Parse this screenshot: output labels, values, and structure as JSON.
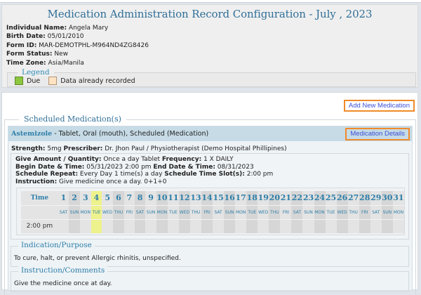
{
  "header": {
    "title": "Medication Administration Record Configuration - July , 2023",
    "fields": [
      {
        "label": "Individual Name:",
        "value": "Angela Mary"
      },
      {
        "label": "Birth Date:",
        "value": "05/01/2010"
      },
      {
        "label": "Form ID:",
        "value": "MAR-DEMOTPHL-M964ND4ZG8426"
      },
      {
        "label": "Form Status:",
        "value": "New"
      },
      {
        "label": "Time Zone:",
        "value": "Asia/Manila"
      }
    ],
    "legend": {
      "title": "Legend",
      "items": [
        {
          "label": "Due",
          "color": "#8dc63f"
        },
        {
          "label": "Data already recorded",
          "color": "#fde3c2"
        }
      ]
    }
  },
  "actions": {
    "add_new_medication": "Add New Medication",
    "medication_details": "Medication Details"
  },
  "scheduled": {
    "title": "Scheduled Medication(s)",
    "medication": {
      "name": "Astemizole",
      "description": " - Tablet, Oral (mouth), Scheduled (Medication)",
      "strength_label": "Strength:",
      "strength_value": " 5mg ",
      "prescriber_label": "Prescriber:",
      "prescriber_value": " Dr. Jhon Paul / Physiotherapist (Demo Hospital Phillipines)",
      "give_amount_label": "Give Amount / Quantity:",
      "give_amount_value": " Once a day Tablet ",
      "frequency_label": "Frequency:",
      "frequency_value": " 1 X DAILY",
      "begin_label": "Begin Date & Time:",
      "begin_value": " 05/31/2023 2:00 pm ",
      "end_label": "End Date & Time:",
      "end_value": " 08/31/2023",
      "repeat_label": "Schedule Repeat:",
      "repeat_value": " Every Day 1 time(s) a day ",
      "slots_label": "Schedule Time Slot(s):",
      "slots_value": " 2:00 pm",
      "instruction_label": "Instruction:",
      "instruction_value": " Give medicine once a day. 0+1+0"
    },
    "calendar": {
      "time_header": "Time",
      "time_slots": [
        "2:00 pm"
      ],
      "due_day": 4,
      "days": [
        {
          "n": "1",
          "dow": "SAT"
        },
        {
          "n": "2",
          "dow": "SUN"
        },
        {
          "n": "3",
          "dow": "MON"
        },
        {
          "n": "4",
          "dow": "TUE"
        },
        {
          "n": "5",
          "dow": "WED"
        },
        {
          "n": "6",
          "dow": "THU"
        },
        {
          "n": "7",
          "dow": "FRI"
        },
        {
          "n": "8",
          "dow": "SAT"
        },
        {
          "n": "9",
          "dow": "SUN"
        },
        {
          "n": "10",
          "dow": "MON"
        },
        {
          "n": "11",
          "dow": "TUE"
        },
        {
          "n": "12",
          "dow": "WED"
        },
        {
          "n": "13",
          "dow": "THU"
        },
        {
          "n": "14",
          "dow": "FRI"
        },
        {
          "n": "15",
          "dow": "SAT"
        },
        {
          "n": "16",
          "dow": "SUN"
        },
        {
          "n": "17",
          "dow": "MON"
        },
        {
          "n": "18",
          "dow": "TUE"
        },
        {
          "n": "19",
          "dow": "WED"
        },
        {
          "n": "20",
          "dow": "THU"
        },
        {
          "n": "21",
          "dow": "FRI"
        },
        {
          "n": "22",
          "dow": "SAT"
        },
        {
          "n": "23",
          "dow": "SUN"
        },
        {
          "n": "24",
          "dow": "MON"
        },
        {
          "n": "25",
          "dow": "TUE"
        },
        {
          "n": "26",
          "dow": "WED"
        },
        {
          "n": "27",
          "dow": "THU"
        },
        {
          "n": "28",
          "dow": "FRI"
        },
        {
          "n": "29",
          "dow": "SAT"
        },
        {
          "n": "30",
          "dow": "SUN"
        },
        {
          "n": "31",
          "dow": "MON"
        }
      ]
    },
    "indication": {
      "title": "Indication/Purpose",
      "text": "To cure, halt, or prevent Allergic rhinitis, unspecified."
    },
    "comments": {
      "title": "Instruction/Comments",
      "text": "Give the medicine once at day."
    }
  },
  "colors": {
    "title_blue": "#2f6f98",
    "link_blue": "#3b4fd8",
    "highlight_orange": "#f08a2a",
    "due_cell": "#eef28c"
  }
}
